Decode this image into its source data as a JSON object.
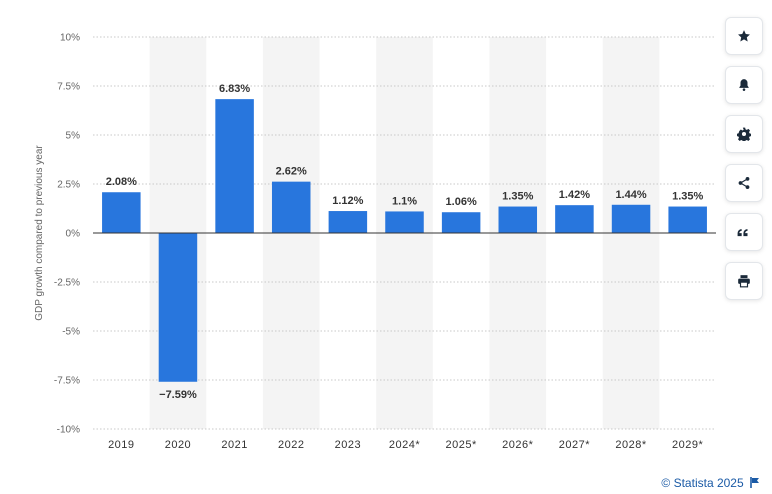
{
  "chart_data": {
    "type": "bar",
    "title": "",
    "xlabel": "",
    "ylabel": "GDP growth compared to previous year",
    "categories": [
      "2019",
      "2020",
      "2021",
      "2022",
      "2023",
      "2024*",
      "2025*",
      "2026*",
      "2027*",
      "2028*",
      "2029*"
    ],
    "values": [
      2.08,
      -7.59,
      6.83,
      2.62,
      1.12,
      1.1,
      1.06,
      1.35,
      1.42,
      1.44,
      1.35
    ],
    "value_labels": [
      "2.08%",
      "−7.59%",
      "6.83%",
      "2.62%",
      "1.12%",
      "1.1%",
      "1.06%",
      "1.35%",
      "1.42%",
      "1.44%",
      "1.35%"
    ],
    "ylim": [
      -10,
      10
    ],
    "yticks": [
      10,
      7.5,
      5,
      2.5,
      0,
      -2.5,
      -5,
      -7.5,
      -10
    ],
    "ytick_labels": [
      "10%",
      "7.5%",
      "5%",
      "2.5%",
      "0%",
      "-2.5%",
      "-5%",
      "-7.5%",
      "-10%"
    ],
    "grid": true,
    "bar_color": "#2876dd",
    "band_color": "#f4f4f4"
  },
  "toolbar": {
    "buttons": [
      {
        "name": "favorite",
        "icon": "star-icon"
      },
      {
        "name": "notification",
        "icon": "bell-icon"
      },
      {
        "name": "settings",
        "icon": "gear-icon"
      },
      {
        "name": "share",
        "icon": "share-icon"
      },
      {
        "name": "cite",
        "icon": "quote-icon"
      },
      {
        "name": "print",
        "icon": "printer-icon"
      }
    ]
  },
  "footer": {
    "credit": "© Statista 2025",
    "credit_icon": "flag-icon"
  }
}
